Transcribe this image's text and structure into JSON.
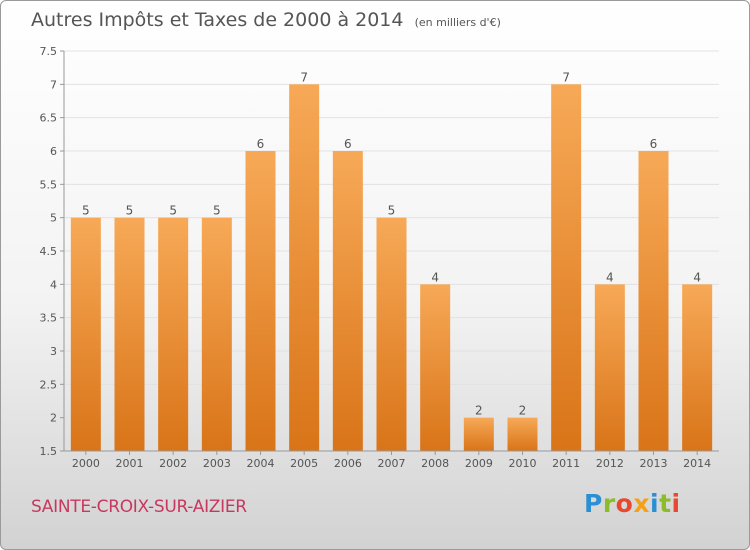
{
  "title": "Autres Impôts et Taxes de 2000 à 2014",
  "unit_note": "(en milliers d'€)",
  "commune": "SAINTE-CROIX-SUR-AIZIER",
  "logo": {
    "text": "Proxiti",
    "letter_colors": [
      "#2a8fd4",
      "#8bbd2a",
      "#e8482e",
      "#f5a01a",
      "#2a8fd4",
      "#8bbd2a",
      "#e8482e"
    ]
  },
  "colors": {
    "bar_top": "#f7a957",
    "bar_bottom": "#d97418",
    "axis": "#999999",
    "grid": "#e2e2e2",
    "text": "#555555"
  },
  "chart_data": {
    "type": "bar",
    "title": "Autres Impôts et Taxes de 2000 à 2014",
    "xlabel": "",
    "ylabel": "",
    "categories": [
      "2000",
      "2001",
      "2002",
      "2003",
      "2004",
      "2005",
      "2006",
      "2007",
      "2008",
      "2009",
      "2010",
      "2011",
      "2012",
      "2013",
      "2014"
    ],
    "values": [
      5,
      5,
      5,
      5,
      6,
      7,
      6,
      5,
      4,
      2,
      2,
      7,
      4,
      6,
      4
    ],
    "ylim": [
      1.5,
      7.5
    ],
    "yticks": [
      1.5,
      2,
      2.5,
      3,
      3.5,
      4,
      4.5,
      5,
      5.5,
      6,
      6.5,
      7,
      7.5
    ],
    "ytick_labels": [
      "1.5",
      "2",
      "2.5",
      "3",
      "3.5",
      "4",
      "4.5",
      "5",
      "5.5",
      "6",
      "6.5",
      "7",
      "7.5"
    ],
    "grid": true,
    "data_labels": true
  }
}
